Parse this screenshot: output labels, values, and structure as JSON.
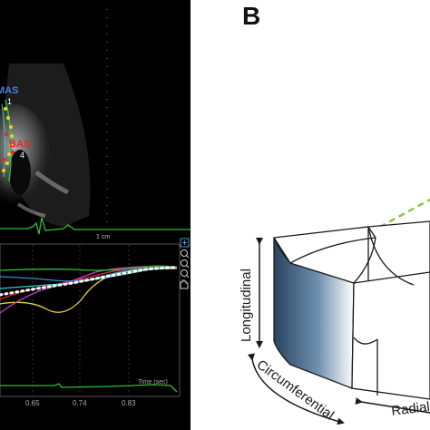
{
  "panel_a": {
    "labels": {
      "mas": "MAS",
      "mas_index": "1",
      "bas": "BAS",
      "bas_index": "4",
      "scale": "1 cm",
      "time_axis": "Time (sec)"
    },
    "ticks": [
      "0.65",
      "0.74",
      "0.83"
    ],
    "colors": {
      "mas": "#4e7ee0",
      "bas": "#e02a2a",
      "ecg": "#2fbf3a",
      "tracking_points": "#f2d21a",
      "curves": [
        "#ffffff",
        "#2fbf3a",
        "#3a8ad8",
        "#c23ccb",
        "#e02a2a",
        "#e8d23a",
        "#2fd0d0"
      ]
    }
  },
  "panel_b": {
    "letter": "B",
    "axes": {
      "longitudinal": "Longitudinal",
      "circumferential": "Circumferential",
      "radial": "Radial"
    },
    "colors": {
      "wall_dark": "#29445f",
      "wall_light": "#ffffff",
      "guide_lines": "#8cc63f",
      "outline": "#1a1a1a"
    }
  }
}
